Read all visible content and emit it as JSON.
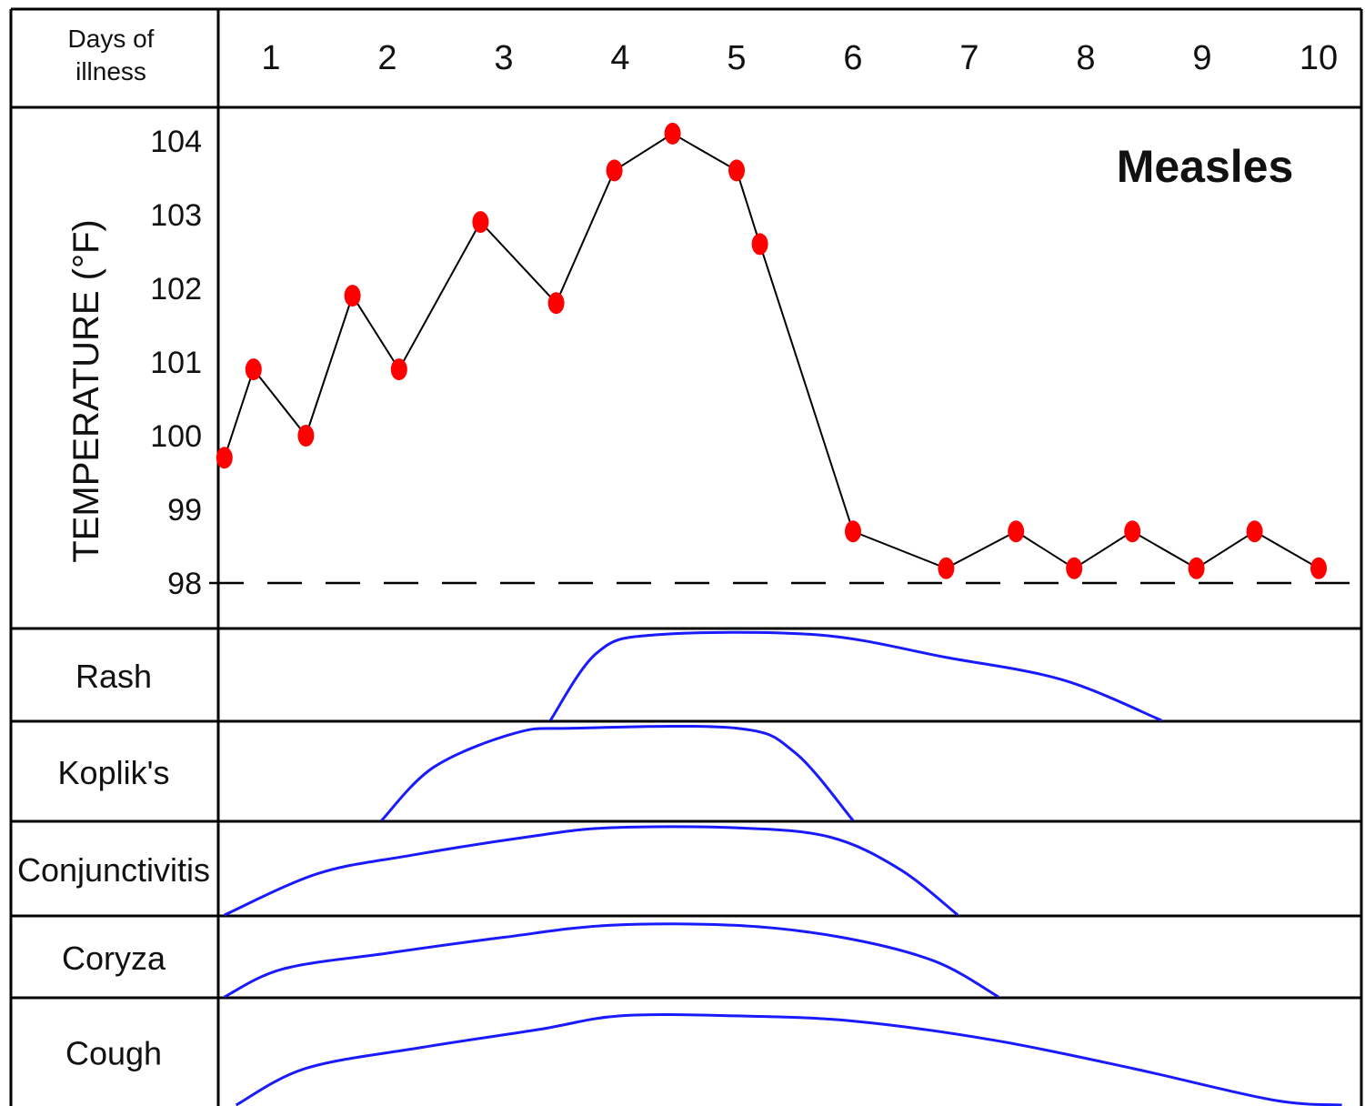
{
  "chart_data": {
    "type": "line",
    "title": "Measles",
    "header": {
      "line1": "Days of",
      "line2": "illness"
    },
    "days": [
      "1",
      "2",
      "3",
      "4",
      "5",
      "6",
      "7",
      "8",
      "9",
      "10"
    ],
    "ylabel": "TEMPERATURE (°F)",
    "ylim": [
      98,
      104.3
    ],
    "yticks": [
      "98",
      "99",
      "100",
      "101",
      "102",
      "103",
      "104"
    ],
    "baseline": 98,
    "temperature": {
      "x": [
        0.6,
        0.85,
        1.3,
        1.7,
        2.1,
        2.8,
        3.45,
        3.95,
        4.45,
        5.0,
        5.2,
        6.0,
        6.8,
        7.4,
        7.9,
        8.4,
        8.95,
        9.45,
        10.0
      ],
      "y": [
        99.7,
        100.9,
        100.0,
        101.9,
        100.9,
        102.9,
        101.8,
        103.6,
        104.1,
        103.6,
        102.6,
        98.7,
        98.2,
        98.7,
        98.2,
        98.7,
        98.2,
        98.7,
        98.2
      ]
    },
    "symptoms": [
      {
        "name": "Rash",
        "points": [
          [
            3.4,
            0.0
          ],
          [
            3.8,
            0.75
          ],
          [
            4.3,
            0.95
          ],
          [
            5.7,
            0.95
          ],
          [
            6.8,
            0.7
          ],
          [
            7.8,
            0.45
          ],
          [
            8.65,
            0.0
          ]
        ]
      },
      {
        "name": "Koplik's",
        "points": [
          [
            1.95,
            0.0
          ],
          [
            2.4,
            0.55
          ],
          [
            3.1,
            0.9
          ],
          [
            3.6,
            0.95
          ],
          [
            5.0,
            0.95
          ],
          [
            5.5,
            0.7
          ],
          [
            6.0,
            0.0
          ]
        ]
      },
      {
        "name": "Conjunctivitis",
        "points": [
          [
            0.6,
            0.0
          ],
          [
            1.4,
            0.45
          ],
          [
            2.2,
            0.65
          ],
          [
            3.2,
            0.85
          ],
          [
            3.9,
            0.95
          ],
          [
            5.0,
            0.95
          ],
          [
            5.8,
            0.85
          ],
          [
            6.4,
            0.5
          ],
          [
            6.9,
            0.0
          ]
        ]
      },
      {
        "name": "Coryza",
        "points": [
          [
            0.6,
            0.0
          ],
          [
            1.1,
            0.35
          ],
          [
            2.0,
            0.55
          ],
          [
            3.0,
            0.75
          ],
          [
            3.9,
            0.9
          ],
          [
            5.0,
            0.9
          ],
          [
            5.9,
            0.75
          ],
          [
            6.7,
            0.45
          ],
          [
            7.25,
            0.0
          ]
        ]
      },
      {
        "name": "Cough",
        "points": [
          [
            0.7,
            0.0
          ],
          [
            1.3,
            0.35
          ],
          [
            2.3,
            0.55
          ],
          [
            3.3,
            0.72
          ],
          [
            4.0,
            0.85
          ],
          [
            5.0,
            0.85
          ],
          [
            6.0,
            0.8
          ],
          [
            7.2,
            0.62
          ],
          [
            8.4,
            0.35
          ],
          [
            9.6,
            0.05
          ],
          [
            10.2,
            0.0
          ]
        ]
      }
    ],
    "colors": {
      "points": "#ff0000",
      "line": "#000000",
      "symptom": "#1a1aff",
      "grid": "#000000"
    }
  }
}
